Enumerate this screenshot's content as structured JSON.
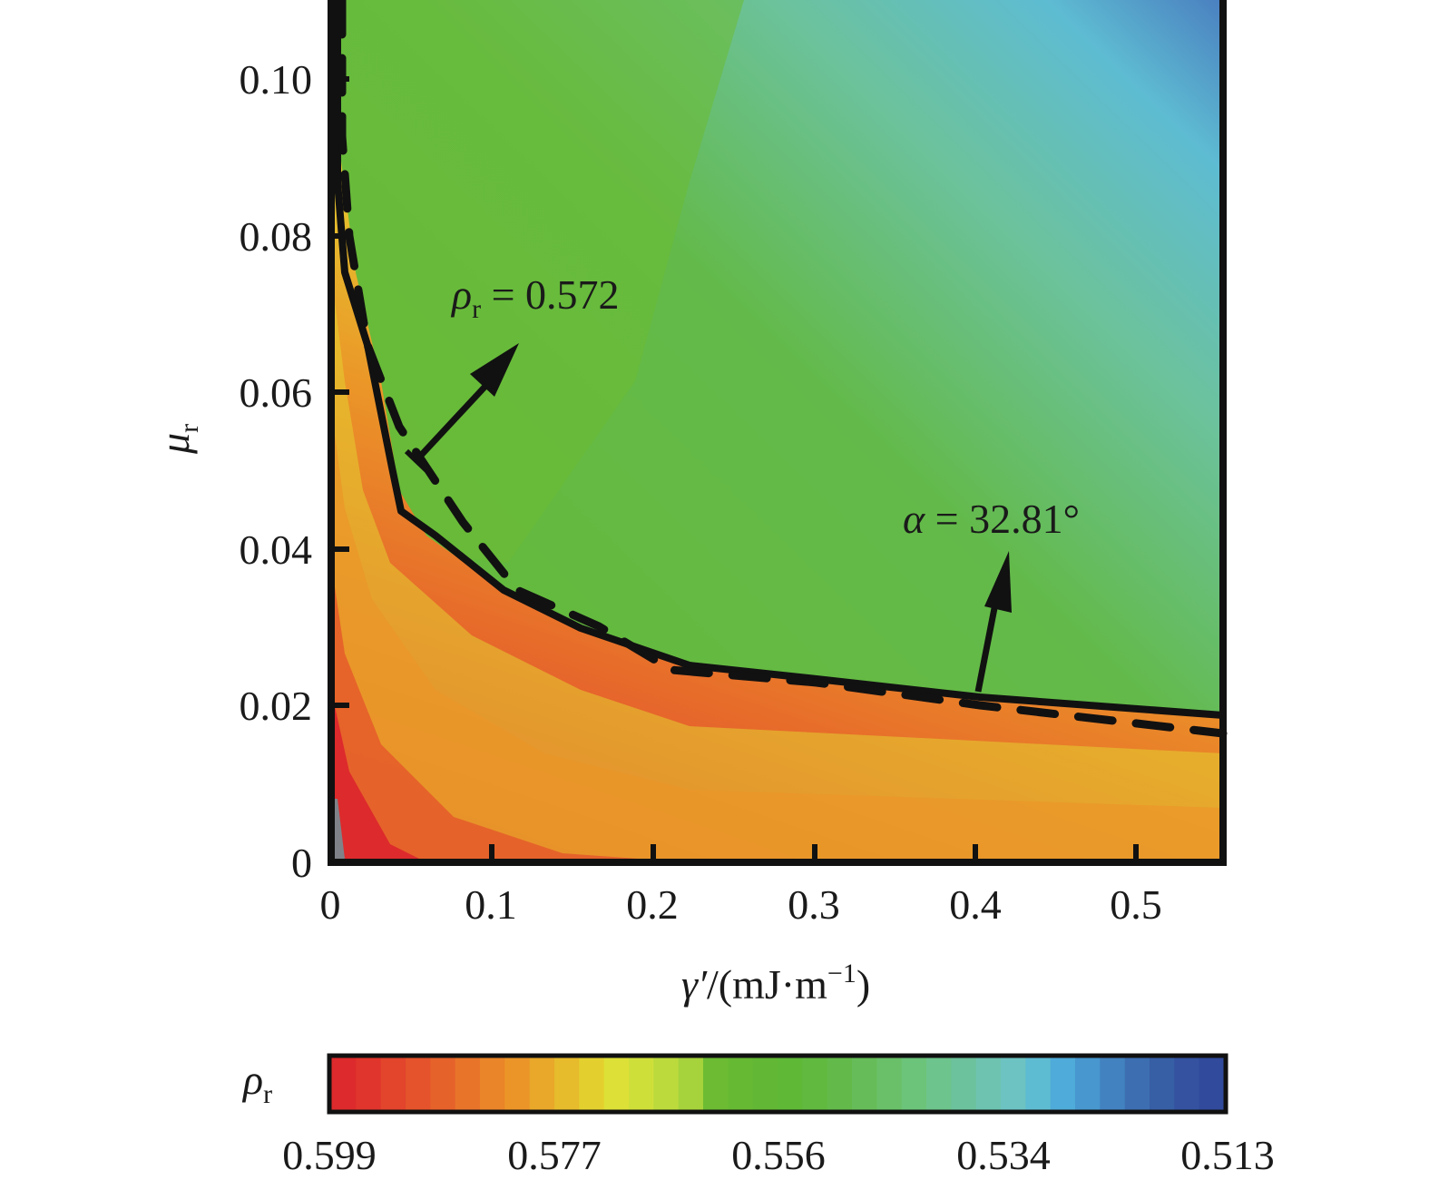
{
  "chart_data": {
    "type": "heatmap",
    "subtype": "filled-contour",
    "title": "",
    "xlabel": "γ′/(mJ·m⁻¹)",
    "xlabel_parts": {
      "symbol": "γ′",
      "unit_open": "/(mJ·m",
      "exp": "−1",
      "unit_close": ")"
    },
    "ylabel": "μr",
    "ylabel_parts": {
      "symbol": "μ",
      "sub": "r"
    },
    "xlim": [
      0,
      0.55
    ],
    "ylim": [
      0,
      0.11
    ],
    "x_ticks": [
      0,
      0.1,
      0.2,
      0.3,
      0.4,
      0.5
    ],
    "x_tick_labels": [
      "0",
      "0.1",
      "0.2",
      "0.3",
      "0.4",
      "0.5"
    ],
    "y_ticks": [
      0,
      0.02,
      0.04,
      0.06,
      0.08,
      0.1
    ],
    "y_tick_labels": [
      "0",
      "0.02",
      "0.04",
      "0.06",
      "0.08",
      "0.10"
    ],
    "grid": false,
    "z_variable": "ρr",
    "colorbar": {
      "label": "ρr",
      "label_parts": {
        "symbol": "ρ",
        "sub": "r"
      },
      "position": "bottom",
      "orientation": "horizontal",
      "range": [
        0.599,
        0.513
      ],
      "tick_labels": [
        "0.599",
        "0.577",
        "0.556",
        "0.534",
        "0.513"
      ],
      "colors": [
        "#dd2a2c",
        "#e0352c",
        "#e2442c",
        "#e4532b",
        "#e6622b",
        "#e8742a",
        "#ea8529",
        "#eb9528",
        "#e9a82a",
        "#e6bb2c",
        "#e3d02f",
        "#dde036",
        "#cfdf3a",
        "#bcda3c",
        "#a6d33b",
        "#6cbb33",
        "#66b933",
        "#62b834",
        "#5fb836",
        "#61b93f",
        "#63ba4a",
        "#66bc58",
        "#69c068",
        "#6cc47a",
        "#6dc48c",
        "#6cc29c",
        "#6dc3b0",
        "#6dc3c2",
        "#5ebcd2",
        "#4fabd9",
        "#4897cf",
        "#4382c0",
        "#3d6eb1",
        "#375fa6",
        "#3452a0",
        "#314a9b"
      ]
    },
    "contour_lines": [
      {
        "name": "ρr = 0.572",
        "style": "solid",
        "label": "ρr = 0.572",
        "points": [
          [
            0.003,
            0.11
          ],
          [
            0.003,
            0.087
          ],
          [
            0.01,
            0.073
          ],
          [
            0.025,
            0.065
          ],
          [
            0.04,
            0.05
          ],
          [
            0.045,
            0.045
          ],
          [
            0.07,
            0.041
          ],
          [
            0.11,
            0.035
          ],
          [
            0.16,
            0.031
          ],
          [
            0.22,
            0.0255
          ],
          [
            0.3,
            0.024
          ],
          [
            0.4,
            0.0215
          ],
          [
            0.5,
            0.0195
          ],
          [
            0.55,
            0.0185
          ]
        ]
      },
      {
        "name": "α = 32.81°",
        "style": "dashed",
        "label": "α = 32.81°",
        "points": [
          [
            0.01,
            0.11
          ],
          [
            0.013,
            0.095
          ],
          [
            0.02,
            0.08
          ],
          [
            0.03,
            0.065
          ],
          [
            0.05,
            0.052
          ],
          [
            0.08,
            0.043
          ],
          [
            0.11,
            0.036
          ],
          [
            0.16,
            0.031
          ],
          [
            0.21,
            0.025
          ],
          [
            0.25,
            0.0235
          ],
          [
            0.35,
            0.022
          ],
          [
            0.45,
            0.019
          ],
          [
            0.55,
            0.0165
          ]
        ]
      }
    ],
    "annotations": [
      {
        "text": "ρr = 0.572",
        "parts": {
          "symbol": "ρ",
          "sub": "r",
          "rest": " = 0.572"
        },
        "arrow_from": [
          0.052,
          0.052
        ],
        "arrow_to": [
          0.115,
          0.067
        ]
      },
      {
        "text": "α = 32.81°",
        "parts": {
          "symbol": "α",
          "rest": " = 32.81°"
        },
        "arrow_from": [
          0.4,
          0.0215
        ],
        "arrow_to": [
          0.42,
          0.039
        ]
      }
    ],
    "regions": [
      {
        "area": "lower-left (x<0.05, y<0.01)",
        "approx_value": 0.599,
        "color": "#dd2a2c"
      },
      {
        "area": "along contour boundary",
        "approx_value": 0.577,
        "color": "#dde036"
      },
      {
        "area": "central plateau",
        "approx_value": 0.56,
        "color": "#66b933"
      },
      {
        "area": "upper-right corner (x≈0.55, y≈0.11)",
        "approx_value": 0.525,
        "color": "#4a7fc0"
      }
    ]
  }
}
